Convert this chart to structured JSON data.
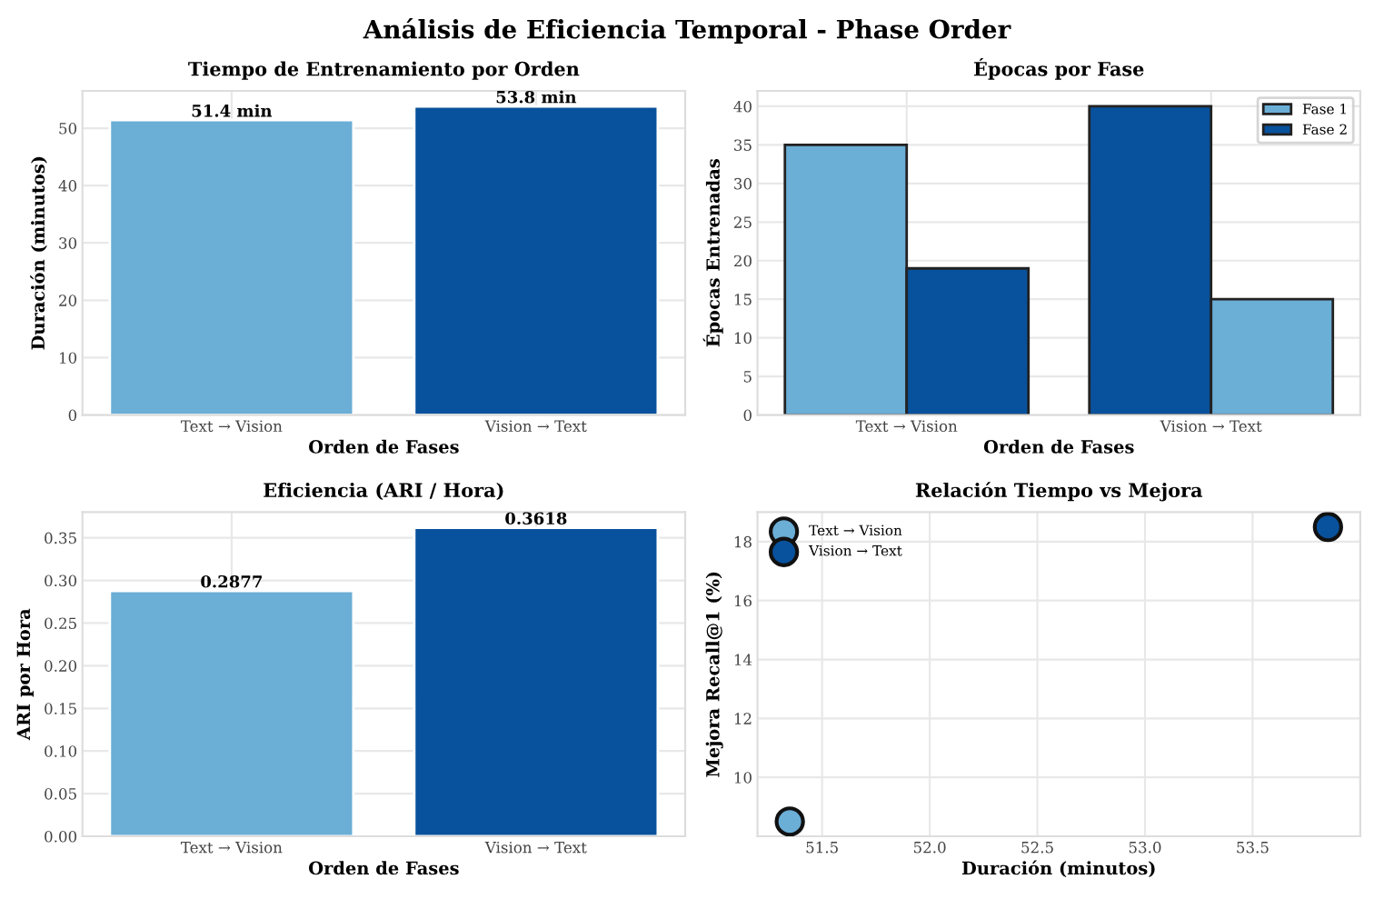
{
  "chart_data": [
    {
      "type": "bar",
      "annotations": [
        "Análisis de Eficiencia Temporal - Phase Order"
      ],
      "title": "Tiempo de Entrenamiento por Orden",
      "xlabel": "Orden de Fases",
      "ylabel": "Duración (minutos)",
      "categories": [
        "Text → Vision",
        "Vision → Text"
      ],
      "values": [
        51.4,
        53.8
      ],
      "colors": [
        "#6baed6",
        "#08519c"
      ],
      "value_labels": [
        "51.4 min",
        "53.8 min"
      ],
      "ylim": [
        0,
        56.5
      ],
      "yticks": [
        0,
        10,
        20,
        30,
        40,
        50
      ],
      "grid": true
    },
    {
      "type": "bar",
      "title": "Épocas por Fase",
      "xlabel": "Orden de Fases",
      "ylabel": "Épocas Entrenadas",
      "categories": [
        "Text → Vision",
        "Vision → Text"
      ],
      "series": [
        {
          "name": "Fase 1",
          "color": "#6baed6",
          "colors": [
            "#6baed6",
            "#08519c"
          ],
          "values": [
            35,
            40
          ]
        },
        {
          "name": "Fase 2",
          "color": "#08519c",
          "colors": [
            "#08519c",
            "#6baed6"
          ],
          "values": [
            19,
            15
          ]
        }
      ],
      "ylim": [
        0,
        42
      ],
      "yticks": [
        0,
        5,
        10,
        15,
        20,
        25,
        30,
        35,
        40
      ],
      "grid": true,
      "legend": "top right"
    },
    {
      "type": "bar",
      "title": "Eficiencia (ARI / Hora)",
      "xlabel": "Orden de Fases",
      "ylabel": "ARI por Hora",
      "categories": [
        "Text → Vision",
        "Vision → Text"
      ],
      "values": [
        0.2877,
        0.3618
      ],
      "colors": [
        "#6baed6",
        "#08519c"
      ],
      "data_labels": true,
      "ylim": [
        0,
        0.38
      ],
      "yticks": [
        {
          "value": 0,
          "label": "0.00"
        },
        0.05,
        {
          "value": 0.1,
          "label": "0.10"
        },
        0.15,
        {
          "value": 0.2,
          "label": "0.20"
        },
        0.25,
        {
          "value": 0.3,
          "label": "0.30"
        },
        0.35
      ],
      "grid": true
    },
    {
      "type": "scatter",
      "title": "Relación Tiempo vs Mejora",
      "xlabel": "Duración (minutos)",
      "ylabel": "Mejora Recall@1 (%)",
      "series": [
        {
          "name": "Text → Vision",
          "color": "#6baed6",
          "x": [
            51.35
          ],
          "values": [
            8.5
          ]
        },
        {
          "name": "Vision → Text",
          "color": "#08519c",
          "x": [
            53.85
          ],
          "values": [
            18.5
          ]
        }
      ],
      "xlim": [
        51.2,
        54.0
      ],
      "xticks": [
        51.5,
        {
          "value": 52,
          "label": "52.0"
        },
        52.5,
        {
          "value": 53,
          "label": "53.0"
        },
        53.5
      ],
      "ylim": [
        8.0,
        19.0
      ],
      "yticks": [
        10,
        12,
        14,
        16,
        18
      ],
      "grid": true,
      "legend": "top left",
      "marker": "circle"
    }
  ]
}
